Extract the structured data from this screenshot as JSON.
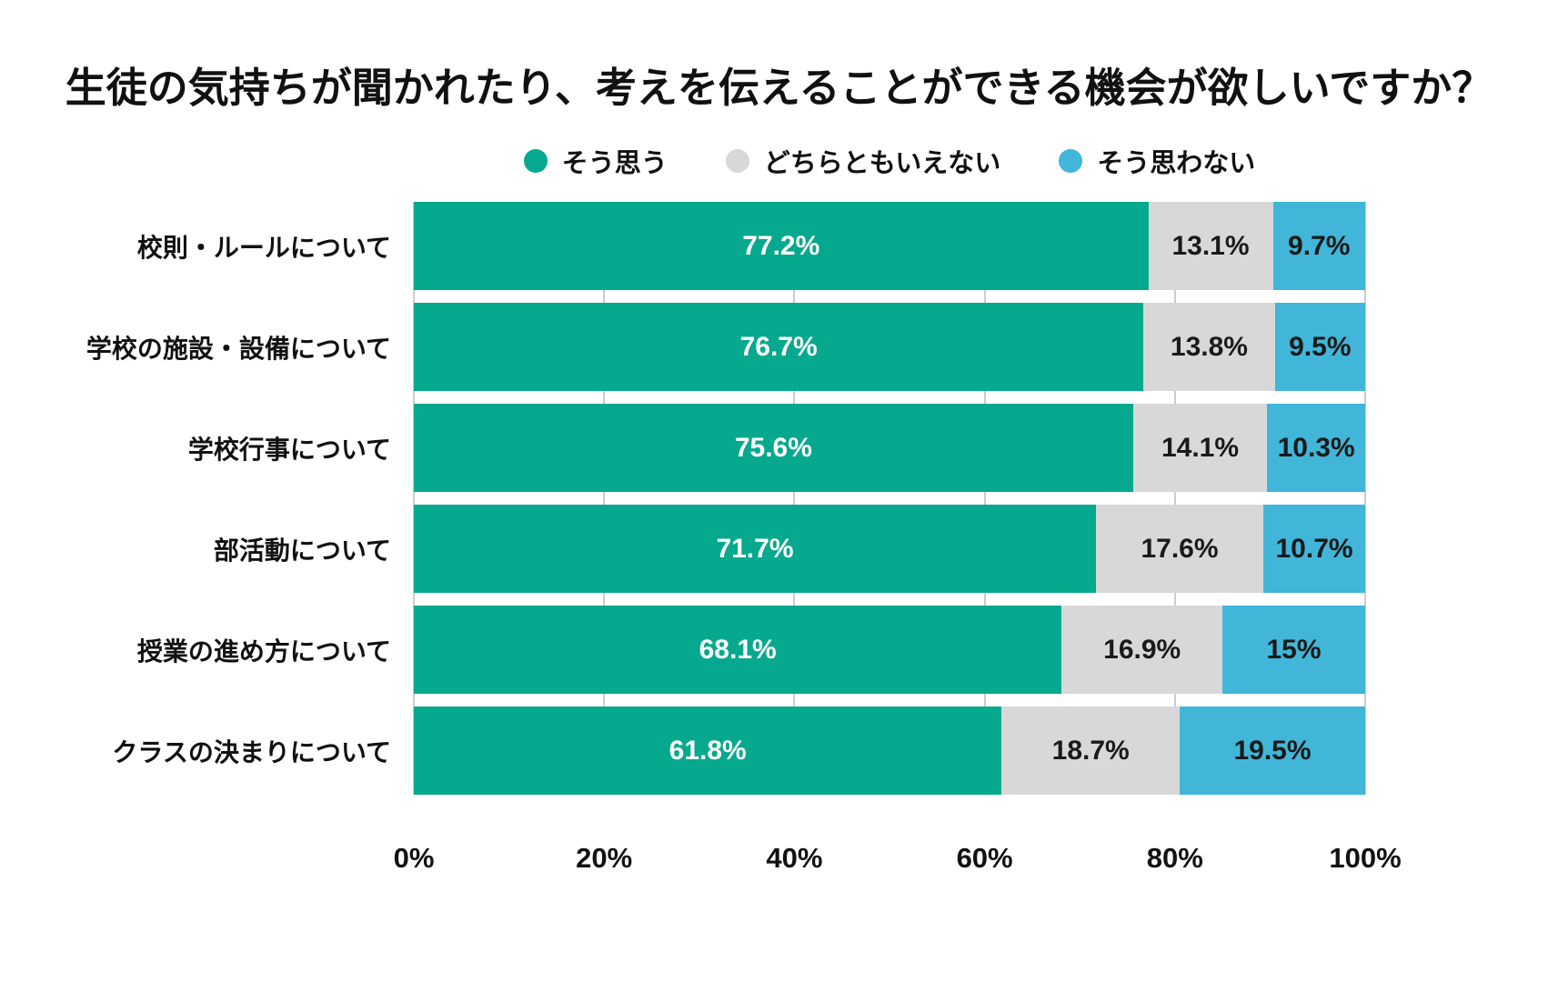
{
  "chart_data": {
    "type": "bar",
    "orientation": "horizontal",
    "stacked": true,
    "title": "生徒の気持ちが聞かれたり、考えを伝えることができる機会が欲しいですか？",
    "categories": [
      "校則・ルールについて",
      "学校の施設・設備について",
      "学校行事について",
      "部活動について",
      "授業の進め方について",
      "クラスの決まりについて"
    ],
    "series": [
      {
        "name": "そう思う",
        "color": "#06a98d",
        "text_color": "#ffffff",
        "values": [
          77.2,
          76.7,
          75.6,
          71.7,
          68.1,
          61.8
        ],
        "labels": [
          "77.2%",
          "76.7%",
          "75.6%",
          "71.7%",
          "68.1%",
          "61.8%"
        ]
      },
      {
        "name": "どちらともいえない",
        "color": "#d8d8d8",
        "text_color": "#1a1a1a",
        "values": [
          13.1,
          13.8,
          14.1,
          17.6,
          16.9,
          18.7
        ],
        "labels": [
          "13.1%",
          "13.8%",
          "14.1%",
          "17.6%",
          "16.9%",
          "18.7%"
        ]
      },
      {
        "name": "そう思わない",
        "color": "#41b6d9",
        "text_color": "#1a1a1a",
        "values": [
          9.7,
          9.5,
          10.3,
          10.7,
          15,
          19.5
        ],
        "labels": [
          "9.7%",
          "9.5%",
          "10.3%",
          "10.7%",
          "15%",
          "19.5%"
        ]
      }
    ],
    "x_ticks": [
      "0%",
      "20%",
      "40%",
      "60%",
      "80%",
      "100%"
    ],
    "xlim": [
      0,
      100
    ],
    "grid": true,
    "gridline_color": "#cccccc",
    "legend_position": "top",
    "background_color": "#ffffff"
  }
}
